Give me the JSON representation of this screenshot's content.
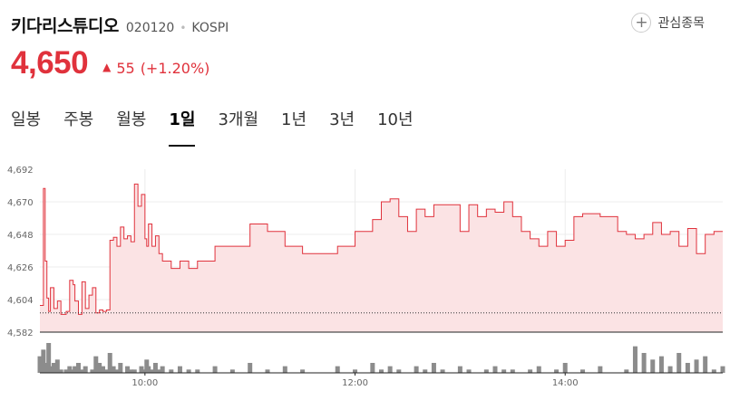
{
  "stock": {
    "name": "키다리스튜디오",
    "code": "020120",
    "market": "KOSPI",
    "price": "4,650",
    "change": "55",
    "change_pct": "(+1.20%)"
  },
  "watch_label": "관심종목",
  "tabs": [
    "일봉",
    "주봉",
    "월봉",
    "1일",
    "3개월",
    "1년",
    "3년",
    "10년"
  ],
  "active_tab": "1일",
  "colors": {
    "up": "#e0323c",
    "line": "#e0323c",
    "area": "#fbe3e4",
    "volume": "#8c8c8c"
  },
  "chart_data": {
    "type": "area",
    "ylim": [
      4582,
      4692
    ],
    "yticks": [
      "4,692",
      "4,670",
      "4,648",
      "4,626",
      "4,604",
      "4,582"
    ],
    "ytick_values": [
      4692,
      4670,
      4648,
      4626,
      4604,
      4582
    ],
    "xlim": [
      "09:00",
      "15:30"
    ],
    "xticks": [
      "10:00",
      "12:00",
      "14:00"
    ],
    "reference_price": 4595,
    "series": [
      {
        "x": [
          "09:00",
          "09:02",
          "09:03",
          "09:04",
          "09:05",
          "09:06",
          "09:08",
          "09:10",
          "09:12",
          "09:15",
          "09:17",
          "09:19",
          "09:20",
          "09:22",
          "09:24",
          "09:26",
          "09:28",
          "09:30",
          "09:32",
          "09:34",
          "09:36",
          "09:38",
          "09:40",
          "09:42",
          "09:44",
          "09:46",
          "09:48",
          "09:50",
          "09:52",
          "09:54",
          "09:56",
          "09:58",
          "10:00",
          "10:01",
          "10:02",
          "10:04",
          "10:06",
          "10:08",
          "10:10",
          "10:15",
          "10:20",
          "10:25",
          "10:30",
          "10:40",
          "10:50",
          "11:00",
          "11:10",
          "11:20",
          "11:30",
          "11:40",
          "11:50",
          "12:00",
          "12:10",
          "12:15",
          "12:20",
          "12:25",
          "12:30",
          "12:35",
          "12:40",
          "12:45",
          "12:50",
          "13:00",
          "13:05",
          "13:10",
          "13:15",
          "13:20",
          "13:25",
          "13:30",
          "13:35",
          "13:40",
          "13:45",
          "13:50",
          "13:55",
          "14:00",
          "14:05",
          "14:10",
          "14:20",
          "14:30",
          "14:35",
          "14:40",
          "14:45",
          "14:50",
          "14:55",
          "15:00",
          "15:05",
          "15:10",
          "15:15",
          "15:20",
          "15:25",
          "15:30"
        ],
        "y": [
          4600,
          4679,
          4630,
          4605,
          4596,
          4612,
          4598,
          4603,
          4594,
          4596,
          4617,
          4614,
          4603,
          4594,
          4616,
          4598,
          4607,
          4612,
          4595,
          4597,
          4596,
          4597,
          4644,
          4646,
          4640,
          4653,
          4645,
          4647,
          4643,
          4682,
          4667,
          4675,
          4645,
          4640,
          4655,
          4640,
          4647,
          4635,
          4630,
          4625,
          4630,
          4625,
          4630,
          4640,
          4640,
          4655,
          4650,
          4640,
          4635,
          4635,
          4640,
          4650,
          4658,
          4670,
          4672,
          4660,
          4650,
          4665,
          4660,
          4668,
          4668,
          4650,
          4668,
          4660,
          4665,
          4663,
          4670,
          4660,
          4650,
          4645,
          4640,
          4650,
          4640,
          4644,
          4660,
          4662,
          4660,
          4650,
          4648,
          4645,
          4648,
          4656,
          4648,
          4650,
          4640,
          4652,
          4635,
          4648,
          4650,
          4650
        ],
        "volume": [
          5,
          7,
          2,
          3,
          9,
          2,
          3,
          4,
          1,
          1,
          2,
          1,
          2,
          3,
          1,
          2,
          0,
          1,
          5,
          3,
          2,
          1,
          6,
          2,
          1,
          3,
          0,
          2,
          1,
          1,
          0,
          2,
          1,
          4,
          2,
          1,
          3,
          1,
          2,
          1,
          2,
          1,
          1,
          2,
          1,
          3,
          1,
          2,
          1,
          0,
          2,
          1,
          3,
          1,
          2,
          1,
          0,
          2,
          1,
          3,
          1,
          2,
          1,
          0,
          1,
          2,
          1,
          1,
          0,
          1,
          2,
          0,
          1,
          3,
          0,
          1,
          2,
          0,
          1,
          8,
          6,
          4,
          5,
          2,
          6,
          3,
          4,
          5,
          1,
          2
        ]
      }
    ]
  }
}
